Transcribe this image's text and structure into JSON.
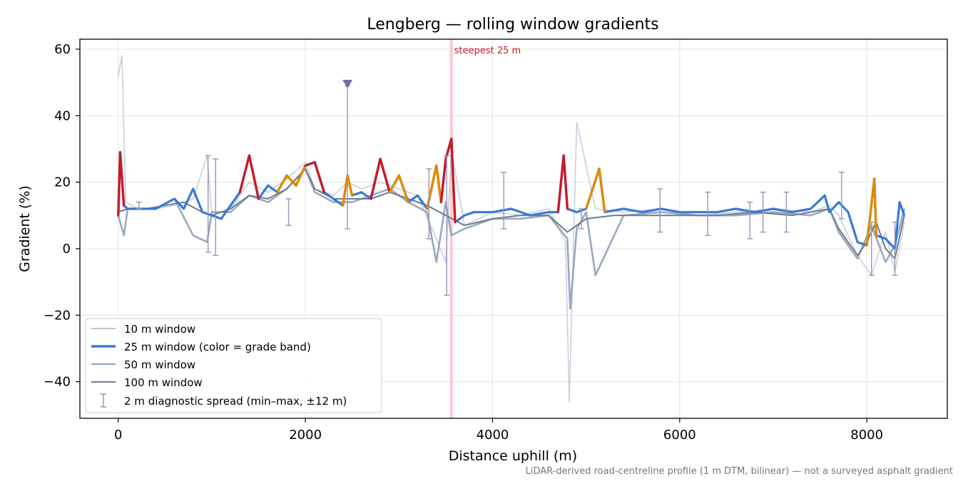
{
  "chart_data": {
    "type": "line",
    "title": "Lengberg — rolling window gradients",
    "xlabel": "Distance uphill (m)",
    "ylabel": "Gradient (%)",
    "xlim": [
      -410,
      8860
    ],
    "ylim": [
      -51,
      63
    ],
    "xticks": [
      0,
      2000,
      4000,
      6000,
      8000
    ],
    "xtick_labels": [
      "0",
      "2000",
      "4000",
      "6000",
      "8000"
    ],
    "yticks": [
      -40,
      -20,
      0,
      20,
      40,
      60
    ],
    "ytick_labels": [
      "−40",
      "−20",
      "0",
      "20",
      "40",
      "60"
    ],
    "grid": true,
    "legend_position": "lower-left",
    "annotation": {
      "text": "steepest 25 m",
      "x": 3560
    },
    "marker": {
      "x": 2450,
      "y": 49.5,
      "shape": "triangle-down"
    },
    "caption": "LiDAR-derived road-centreline profile (1 m DTM, bilinear) — not a surveyed asphalt gradient",
    "grade_band_colors": {
      "normal": "#3a78d8",
      "steep": "#e08a00",
      "very_steep": "#c51b2b"
    },
    "colors": {
      "w10": "#b8c4d2",
      "w25": "#3a78d8",
      "w50": "#8fa0b8",
      "w100": "#6e7b8e",
      "spread": "#9c93b8"
    },
    "series": [
      {
        "name": "10 m window",
        "key": "w10",
        "x": [
          0,
          40,
          80,
          200,
          400,
          600,
          800,
          950,
          1000,
          1200,
          1400,
          1600,
          1800,
          2000,
          2100,
          2300,
          2450,
          2600,
          2800,
          3000,
          3200,
          3400,
          3500,
          3560,
          3700,
          4000,
          4300,
          4600,
          4780,
          4820,
          4900,
          5100,
          5400,
          5800,
          6200,
          6600,
          7000,
          7400,
          7600,
          7700,
          7900,
          8050,
          8200,
          8300,
          8400
        ],
        "y": [
          52,
          58,
          14,
          12,
          12,
          13,
          15,
          28,
          10,
          12,
          20,
          17,
          21,
          26,
          18,
          16,
          20,
          18,
          20,
          18,
          16,
          3,
          -4,
          30,
          7,
          11,
          10,
          12,
          2,
          -46,
          38,
          12,
          11,
          12,
          10,
          11,
          12,
          11,
          13,
          10,
          -2,
          -8,
          5,
          -7,
          8
        ]
      },
      {
        "name": "25 m window (color = grade band)",
        "key": "w25",
        "x": [
          0,
          20,
          60,
          100,
          200,
          400,
          600,
          700,
          800,
          900,
          1000,
          1100,
          1200,
          1300,
          1400,
          1500,
          1600,
          1700,
          1800,
          1900,
          2000,
          2100,
          2200,
          2300,
          2400,
          2450,
          2500,
          2600,
          2700,
          2800,
          2900,
          3000,
          3100,
          3200,
          3300,
          3400,
          3450,
          3500,
          3560,
          3600,
          3700,
          3800,
          4000,
          4200,
          4400,
          4600,
          4700,
          4760,
          4800,
          4900,
          5000,
          5140,
          5200,
          5400,
          5600,
          5800,
          6000,
          6200,
          6400,
          6600,
          6800,
          7000,
          7200,
          7400,
          7550,
          7600,
          7700,
          7800,
          7900,
          8000,
          8080,
          8100,
          8200,
          8300,
          8350,
          8400
        ],
        "y": [
          10,
          29,
          13,
          12,
          12,
          12,
          15,
          12,
          18,
          11,
          10,
          9,
          13,
          17,
          28,
          15,
          19,
          17,
          22,
          19,
          25,
          26,
          17,
          15,
          13,
          22,
          16,
          17,
          15,
          27,
          17,
          22,
          14,
          16,
          12,
          25,
          14,
          27,
          33,
          8,
          10,
          11,
          11,
          12,
          10,
          11,
          11,
          28,
          12,
          11,
          12,
          24,
          11,
          12,
          11,
          12,
          11,
          11,
          11,
          12,
          11,
          12,
          11,
          12,
          16,
          11,
          14,
          11,
          2,
          1,
          21,
          4,
          3,
          0,
          14,
          10
        ]
      },
      {
        "name": "50 m window",
        "key": "w50",
        "x": [
          0,
          60,
          100,
          200,
          400,
          600,
          800,
          950,
          1000,
          1200,
          1400,
          1600,
          1800,
          2000,
          2100,
          2300,
          2500,
          2700,
          2900,
          3100,
          3300,
          3400,
          3500,
          3560,
          3700,
          4000,
          4300,
          4600,
          4800,
          4830,
          4900,
          5000,
          5100,
          5400,
          5800,
          6200,
          6600,
          7000,
          7400,
          7600,
          7700,
          7900,
          8050,
          8200,
          8300,
          8400
        ],
        "y": [
          10,
          4,
          12,
          12,
          12,
          15,
          4,
          2,
          11,
          11,
          16,
          14,
          18,
          24,
          17,
          14,
          14,
          16,
          18,
          14,
          11,
          -4,
          14,
          4,
          6,
          9,
          9,
          10,
          3,
          -18,
          6,
          11,
          -8,
          10,
          11,
          10,
          10,
          11,
          10,
          12,
          5,
          -3,
          7,
          -4,
          1,
          12
        ]
      },
      {
        "name": "100 m window",
        "key": "w100",
        "x": [
          0,
          100,
          300,
          500,
          700,
          900,
          1000,
          1200,
          1400,
          1600,
          1800,
          2000,
          2100,
          2300,
          2500,
          2700,
          2900,
          3100,
          3300,
          3500,
          3700,
          4000,
          4300,
          4600,
          4800,
          5000,
          5300,
          5600,
          6000,
          6400,
          6800,
          7200,
          7600,
          7700,
          7900,
          8000,
          8100,
          8200,
          8300,
          8400
        ],
        "y": [
          11,
          12,
          12,
          13,
          14,
          11,
          10,
          12,
          16,
          15,
          18,
          24,
          18,
          15,
          15,
          15,
          17,
          15,
          13,
          10,
          7,
          9,
          10,
          10,
          5,
          9,
          10,
          10,
          10,
          10,
          11,
          10,
          12,
          6,
          -2,
          2,
          8,
          0,
          -3,
          10
        ]
      }
    ],
    "errorbars": {
      "name": "2 m diagnostic spread (min–max, ±12 m)",
      "x": [
        220,
        960,
        1040,
        1820,
        2450,
        3320,
        3510,
        4120,
        4950,
        5790,
        6300,
        6750,
        6890,
        7140,
        7730,
        8050,
        8300
      ],
      "low": [
        12,
        -1,
        -2,
        7,
        6,
        3,
        -14,
        6,
        6,
        5,
        4,
        3,
        5,
        5,
        9,
        -8,
        -8
      ],
      "high": [
        14,
        28,
        27,
        15,
        49,
        24,
        28,
        23,
        12,
        18,
        17,
        14,
        17,
        17,
        23,
        8,
        8
      ]
    }
  }
}
